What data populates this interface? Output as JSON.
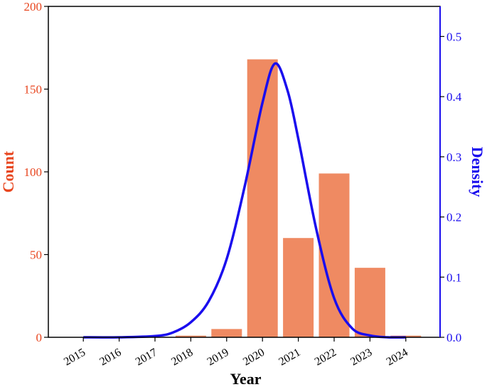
{
  "chart_data": {
    "type": "bar",
    "categories": [
      "2015",
      "2016",
      "2017",
      "2018",
      "2019",
      "2020",
      "2021",
      "2022",
      "2023",
      "2024"
    ],
    "series": [
      {
        "values": [
          0,
          0,
          0,
          1,
          5,
          168,
          60,
          99,
          42,
          1
        ]
      }
    ],
    "density_curve": {
      "type": "line",
      "x": [
        2015,
        2016,
        2017,
        2017.5,
        2018,
        2018.5,
        2019,
        2019.5,
        2020,
        2020.35,
        2020.7,
        2021,
        2021.5,
        2022,
        2022.5,
        2023,
        2023.5,
        2024
      ],
      "y": [
        0.0,
        0.0,
        0.002,
        0.008,
        0.025,
        0.06,
        0.13,
        0.25,
        0.39,
        0.455,
        0.41,
        0.33,
        0.18,
        0.065,
        0.015,
        0.003,
        0.0,
        0.0
      ]
    },
    "xlabel": "Year",
    "ylabel_left": "Count",
    "ylabel_right": "Density",
    "ylim_left": [
      0,
      200
    ],
    "ylim_right": [
      0,
      0.55
    ],
    "yticks_left": [
      "0",
      "50",
      "100",
      "150",
      "200"
    ],
    "yticks_right": [
      "0.0",
      "0.1",
      "0.2",
      "0.3",
      "0.4",
      "0.5"
    ],
    "grid": false,
    "colors": {
      "bar": "#ef8a62",
      "curve": "#1a0dee",
      "left_axis": "#e8461f",
      "right_axis": "#1a0dee"
    }
  }
}
